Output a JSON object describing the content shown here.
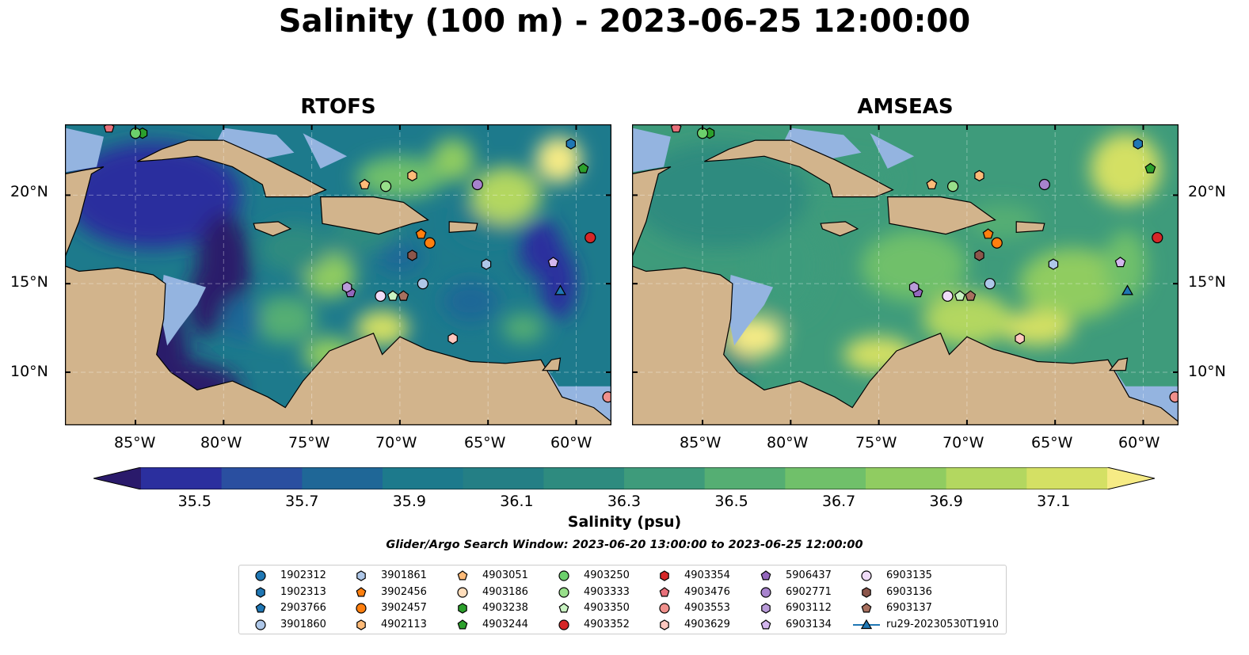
{
  "title": "Salinity (100 m) - 2023-06-25 12:00:00",
  "panels": [
    {
      "title": "RTOFS"
    },
    {
      "title": "AMSEAS"
    }
  ],
  "lon_ticks": [
    "85°W",
    "80°W",
    "75°W",
    "70°W",
    "65°W",
    "60°W"
  ],
  "lat_ticks": [
    "20°N",
    "15°N",
    "10°N"
  ],
  "colors": {
    "land": "#d2b48c",
    "shelf": "#94b4e0",
    "colormap": [
      "#2a1a6b",
      "#2b2f9e",
      "#2a4fa0",
      "#1f6797",
      "#1d7a8c",
      "#247f85",
      "#2e8b7f",
      "#3e9b7b",
      "#55ae73",
      "#70c06a",
      "#90cc61",
      "#b3d760",
      "#d4e064",
      "#f6eb85"
    ]
  },
  "chart_data": {
    "type": "heatmap",
    "title": "Salinity (100 m) - 2023-06-25 12:00:00",
    "colorbar": {
      "label": "Salinity (psu)",
      "vmin": 35.4,
      "vmax": 37.2,
      "ticks": [
        "35.5",
        "35.7",
        "35.9",
        "36.1",
        "36.3",
        "36.5",
        "36.7",
        "36.9",
        "37.1"
      ],
      "extend": "both"
    },
    "extent": {
      "lon": [
        -89,
        -58
      ],
      "lat": [
        7,
        24
      ]
    },
    "grid": true,
    "search_window": "Glider/Argo Search Window: 2023-06-20 13:00:00 to 2023-06-25 12:00:00",
    "series": [
      {
        "name": "1902312",
        "marker": "circle",
        "color": "#1f77b4",
        "lon": null,
        "lat": null
      },
      {
        "name": "1902313",
        "marker": "hexagon",
        "color": "#1f77b4",
        "lon": -60.3,
        "lat": 22.9
      },
      {
        "name": "2903766",
        "marker": "pentagon",
        "color": "#1f77b4",
        "lon": null,
        "lat": null
      },
      {
        "name": "3901860",
        "marker": "circle",
        "color": "#aec7e8",
        "lon": -68.7,
        "lat": 15.0
      },
      {
        "name": "3901861",
        "marker": "hexagon",
        "color": "#aec7e8",
        "lon": -65.1,
        "lat": 16.1
      },
      {
        "name": "3902456",
        "marker": "pentagon",
        "color": "#ff7f0e",
        "lon": -68.8,
        "lat": 17.8
      },
      {
        "name": "3902457",
        "marker": "circle",
        "color": "#ff7f0e",
        "lon": -68.3,
        "lat": 17.3
      },
      {
        "name": "4902113",
        "marker": "hexagon",
        "color": "#ffbb78",
        "lon": -69.3,
        "lat": 21.1
      },
      {
        "name": "4903051",
        "marker": "pentagon",
        "color": "#ffbb78",
        "lon": -72.0,
        "lat": 20.6
      },
      {
        "name": "4903186",
        "marker": "circle",
        "color": "#ffddbb",
        "lon": null,
        "lat": null
      },
      {
        "name": "4903238",
        "marker": "hexagon",
        "color": "#2ca02c",
        "lon": -84.6,
        "lat": 23.5
      },
      {
        "name": "4903244",
        "marker": "pentagon",
        "color": "#2ca02c",
        "lon": -59.6,
        "lat": 21.5
      },
      {
        "name": "4903250",
        "marker": "circle",
        "color": "#6cd06c",
        "lon": -85.0,
        "lat": 23.5
      },
      {
        "name": "4903333",
        "marker": "circle",
        "color": "#98df8a",
        "lon": -70.8,
        "lat": 20.5
      },
      {
        "name": "4903350",
        "marker": "pentagon",
        "color": "#c9f3c2",
        "lon": -70.4,
        "lat": 14.3
      },
      {
        "name": "4903352",
        "marker": "circle",
        "color": "#d62728",
        "lon": -59.2,
        "lat": 17.6
      },
      {
        "name": "4903354",
        "marker": "hexagon",
        "color": "#d62728",
        "lon": null,
        "lat": null
      },
      {
        "name": "4903476",
        "marker": "pentagon",
        "color": "#e8707a",
        "lon": -86.5,
        "lat": 23.8
      },
      {
        "name": "4903553",
        "marker": "circle",
        "color": "#f0908c",
        "lon": -58.2,
        "lat": 8.6
      },
      {
        "name": "4903629",
        "marker": "hexagon",
        "color": "#ffc8c0",
        "lon": -67.0,
        "lat": 11.9
      },
      {
        "name": "5906437",
        "marker": "pentagon",
        "color": "#9467bd",
        "lon": -72.8,
        "lat": 14.5
      },
      {
        "name": "6902771",
        "marker": "circle",
        "color": "#a783cd",
        "lon": -65.6,
        "lat": 20.6
      },
      {
        "name": "6903112",
        "marker": "hexagon",
        "color": "#b99bd9",
        "lon": -73.0,
        "lat": 14.8
      },
      {
        "name": "6903134",
        "marker": "pentagon",
        "color": "#d3b6ee",
        "lon": -61.3,
        "lat": 16.2
      },
      {
        "name": "6903135",
        "marker": "circle",
        "color": "#f0dcf8",
        "lon": -71.1,
        "lat": 14.3
      },
      {
        "name": "6903136",
        "marker": "hexagon",
        "color": "#8c564b",
        "lon": -69.3,
        "lat": 16.6
      },
      {
        "name": "6903137",
        "marker": "pentagon",
        "color": "#a8705f",
        "lon": -69.8,
        "lat": 14.3
      },
      {
        "name": "ru29-20230530T1910",
        "marker": "triangle",
        "color": "#1f77b4",
        "lon": -60.9,
        "lat": 14.6
      }
    ]
  }
}
